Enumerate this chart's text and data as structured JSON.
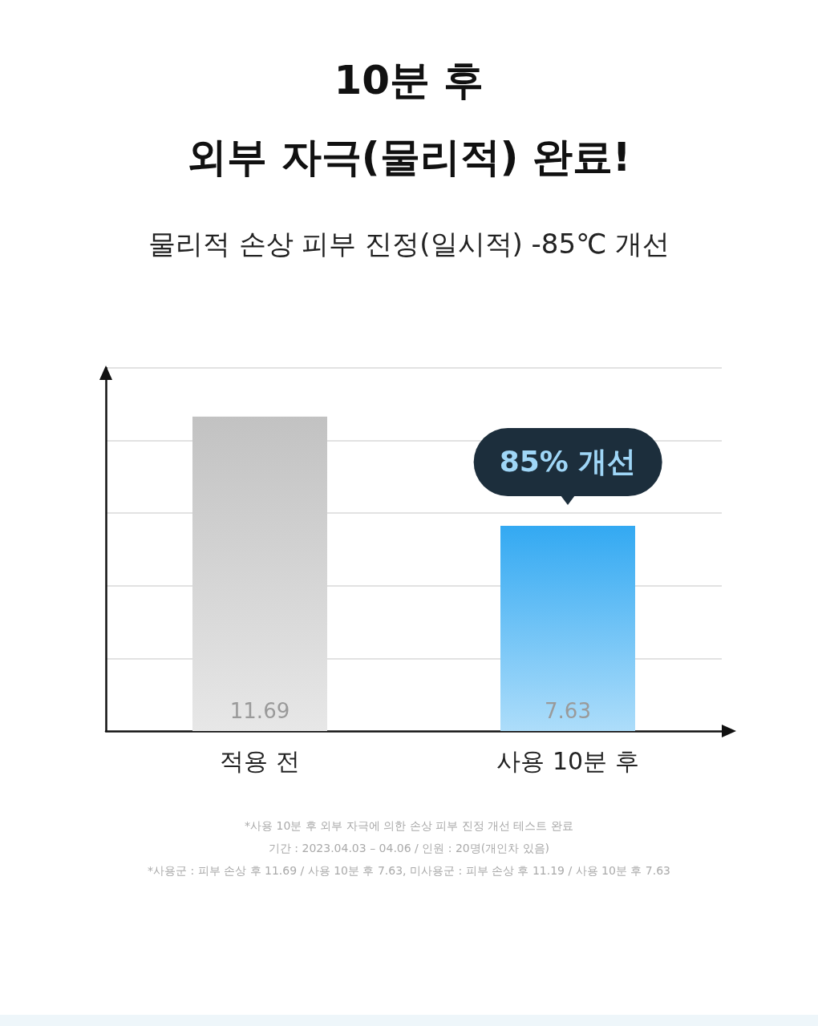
{
  "chart_data": {
    "type": "bar",
    "title": "10분 후\n외부 자극(물리적) 완료!",
    "subtitle": "물리적 손상 피부 진정(일시적) -85℃ 개선",
    "categories": [
      "적용 전",
      "사용 10분 후"
    ],
    "values": [
      11.69,
      7.63
    ],
    "colors": [
      "#c2c2c2",
      "#33a9f2"
    ],
    "ylim": [
      0,
      13.5
    ],
    "yticks": [
      {
        "value": 2.7,
        "label": null
      },
      {
        "value": 5.4,
        "label": null
      },
      {
        "value": 8.1,
        "label": null
      },
      {
        "value": 10.8,
        "label": null
      },
      {
        "value": 13.5,
        "label": null
      }
    ],
    "tick_labels": "x",
    "grid": "y",
    "data_labels": true,
    "annotations": [
      {
        "text": "85% 개선",
        "x": "사용 10분 후",
        "y": 7.63
      },
      "*사용 10분 후 외부 자극에 의한 손상 피부 진정 개선 테스트 완료",
      "기간 : 2023.04.03 – 04.06 / 인원 : 20명(개인차 있음)",
      "*사용군 : 피부 손상 후 11.69 / 사용 10분 후 7.63, 미사용군 : 피부 손상 후 11.19 / 사용 10분 후 7.63"
    ]
  }
}
